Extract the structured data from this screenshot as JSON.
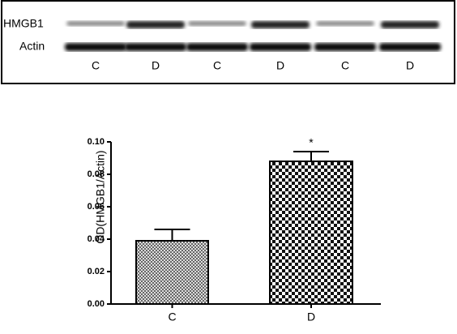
{
  "blot": {
    "row_labels": [
      "HMGB1",
      "Actin"
    ],
    "lane_labels": [
      "C",
      "D",
      "C",
      "D",
      "C",
      "D"
    ]
  },
  "chart_data": {
    "type": "bar",
    "ylabel": "OD(HMGB1/Actin)",
    "categories": [
      "C",
      "D"
    ],
    "values": [
      0.039,
      0.088
    ],
    "errors": [
      0.007,
      0.006
    ],
    "annotation": "*",
    "ylim": [
      0,
      0.1
    ],
    "yticks": [
      {
        "value": 0,
        "label": "0.00"
      },
      {
        "value": 0.02,
        "label": "0.02"
      },
      {
        "value": 0.04,
        "label": "0.04"
      },
      {
        "value": 0.06,
        "label": "0.06"
      },
      {
        "value": 0.08,
        "label": "0.08"
      },
      {
        "value": 0.1,
        "label": "0.10"
      }
    ]
  }
}
